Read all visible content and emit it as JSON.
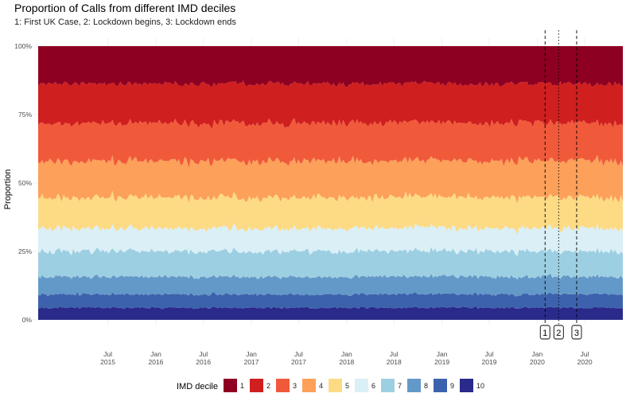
{
  "chart_data": {
    "type": "area",
    "stacked": true,
    "normalized": true,
    "title": "Proportion of Calls from different IMD deciles",
    "subtitle": "1: First UK Case, 2: Lockdown begins, 3: Lockdown ends",
    "ylabel": "Proportion",
    "xlabel": "",
    "xlim": [
      "2014-10-01",
      "2020-11-30"
    ],
    "ylim": [
      0,
      1
    ],
    "yticks": [
      {
        "value": 0,
        "label": "0%"
      },
      {
        "value": 0.25,
        "label": "25%"
      },
      {
        "value": 0.5,
        "label": "50%"
      },
      {
        "value": 0.75,
        "label": "75%"
      },
      {
        "value": 1,
        "label": "100%"
      }
    ],
    "xticks": [
      {
        "date": "2015-07-01",
        "line1": "Jul",
        "line2": "2015"
      },
      {
        "date": "2016-01-01",
        "line1": "Jan",
        "line2": "2016"
      },
      {
        "date": "2016-07-01",
        "line1": "Jul",
        "line2": "2016"
      },
      {
        "date": "2017-01-01",
        "line1": "Jan",
        "line2": "2017"
      },
      {
        "date": "2017-07-01",
        "line1": "Jul",
        "line2": "2017"
      },
      {
        "date": "2018-01-01",
        "line1": "Jan",
        "line2": "2018"
      },
      {
        "date": "2018-07-01",
        "line1": "Jul",
        "line2": "2018"
      },
      {
        "date": "2019-01-01",
        "line1": "Jan",
        "line2": "2019"
      },
      {
        "date": "2019-07-01",
        "line1": "Jul",
        "line2": "2019"
      },
      {
        "date": "2020-01-01",
        "line1": "Jan",
        "line2": "2020"
      },
      {
        "date": "2020-07-01",
        "line1": "Jul",
        "line2": "2020"
      }
    ],
    "grid": true,
    "legend": {
      "title": "IMD decile",
      "position": "bottom"
    },
    "series": [
      {
        "name": "1",
        "color": "#8e0021",
        "share": 0.14
      },
      {
        "name": "2",
        "color": "#cf1f1f",
        "share": 0.145
      },
      {
        "name": "3",
        "color": "#f05a3b",
        "share": 0.14
      },
      {
        "name": "4",
        "color": "#fca05a",
        "share": 0.135
      },
      {
        "name": "5",
        "color": "#fdda84",
        "share": 0.115
      },
      {
        "name": "6",
        "color": "#daeff6",
        "share": 0.085
      },
      {
        "name": "7",
        "color": "#9dcfe2",
        "share": 0.095
      },
      {
        "name": "8",
        "color": "#6399c8",
        "share": 0.065
      },
      {
        "name": "9",
        "color": "#3d62ad",
        "share": 0.05
      },
      {
        "name": "10",
        "color": "#2a2a8a",
        "share": 0.045
      }
    ],
    "annotations": [
      {
        "label": "1",
        "date": "2020-01-31",
        "linestyle": "dashed"
      },
      {
        "label": "2",
        "date": "2020-03-23",
        "linestyle": "dotted"
      },
      {
        "label": "3",
        "date": "2020-05-31",
        "linestyle": "dashed"
      }
    ]
  }
}
